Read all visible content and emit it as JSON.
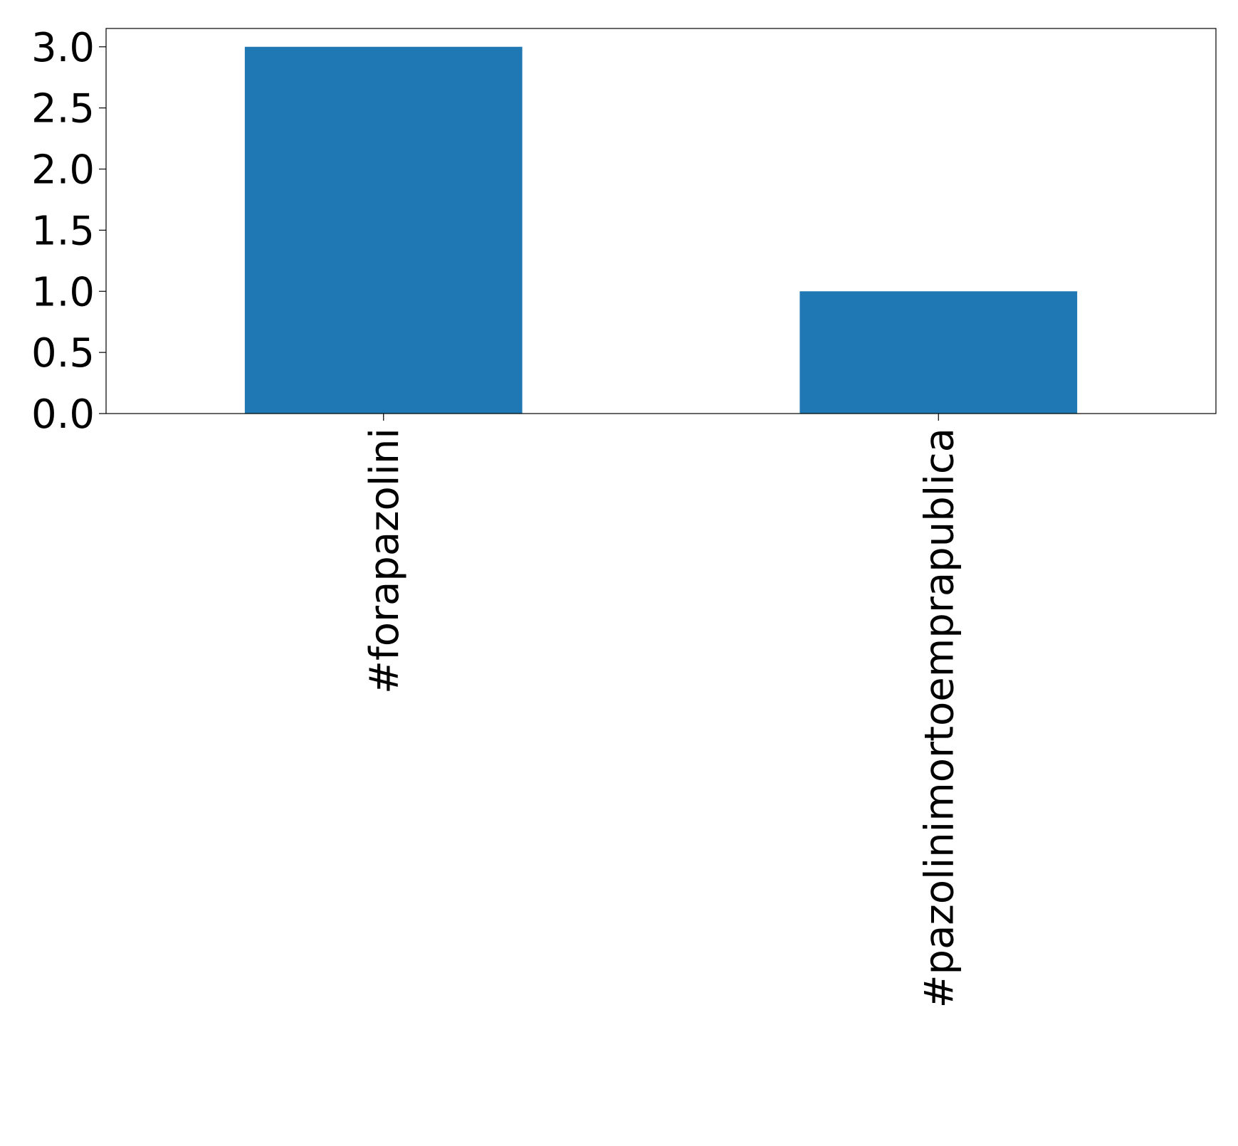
{
  "chart_data": {
    "type": "bar",
    "categories": [
      "#forapazolini",
      "#pazolinimortoemprapublica"
    ],
    "values": [
      3,
      1
    ],
    "color": "#1f77b4",
    "ylim": [
      0,
      3.15
    ],
    "yticks": [
      {
        "value": 0,
        "label": "0.0"
      },
      0.5,
      {
        "value": 1,
        "label": "1.0"
      },
      1.5,
      {
        "value": 2,
        "label": "2.0"
      },
      2.5,
      {
        "value": 3,
        "label": "3.0"
      }
    ],
    "grid": false
  }
}
